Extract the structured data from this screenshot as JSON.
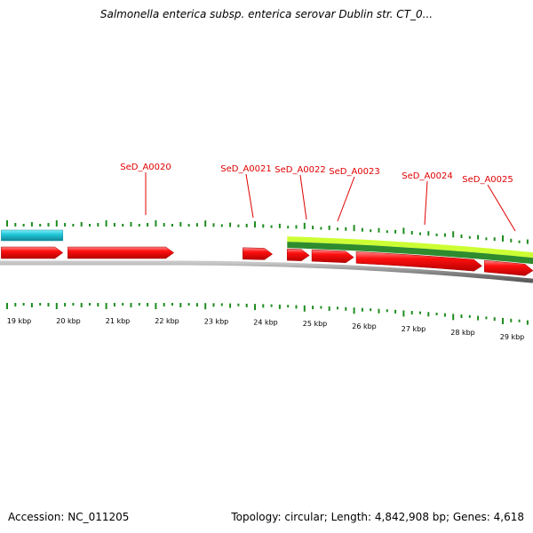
{
  "title": "Salmonella enterica subsp. enterica serovar Dublin str. CT_0...",
  "footer": {
    "accession": "Accession: NC_011205",
    "summary": "Topology: circular; Length: 4,842,908 bp; Genes: 4,618"
  },
  "colors": {
    "cds": "#ff0000",
    "cds_dark": "#c80000",
    "cds_light": "#ff9a9a",
    "label": "#e00000",
    "teal_feature": "#22c8d8",
    "green_light": "#ccff33",
    "green_dark": "#2e8b2e",
    "backbone": "#8a8a8a",
    "gc_ticks": "#1e8c1e"
  },
  "axis": {
    "unit": "kbp",
    "ticks": [
      "19 kbp",
      "20 kbp",
      "21 kbp",
      "22 kbp",
      "23 kbp",
      "24 kbp",
      "25 kbp",
      "26 kbp",
      "27 kbp",
      "28 kbp",
      "29 kbp"
    ]
  },
  "genes": [
    {
      "label": "SeD_A0020",
      "start_kbp": 20.15,
      "end_kbp": 22.3
    },
    {
      "label": "SeD_A0021",
      "start_kbp": 23.7,
      "end_kbp": 24.3
    },
    {
      "label": "SeD_A0022",
      "start_kbp": 24.6,
      "end_kbp": 25.05
    },
    {
      "label": "SeD_A0023",
      "start_kbp": 25.1,
      "end_kbp": 25.95
    },
    {
      "label": "SeD_A0024",
      "start_kbp": 26.0,
      "end_kbp": 28.55
    },
    {
      "label": "SeD_A0025",
      "start_kbp": 28.6,
      "end_kbp": 29.7
    }
  ],
  "left_cds": {
    "start_kbp": 18.8,
    "end_kbp": 20.05
  },
  "teal_feature": {
    "start_kbp": 18.8,
    "end_kbp": 20.05
  },
  "green_feature": {
    "start_kbp": 24.6,
    "end_kbp": 29.7
  }
}
